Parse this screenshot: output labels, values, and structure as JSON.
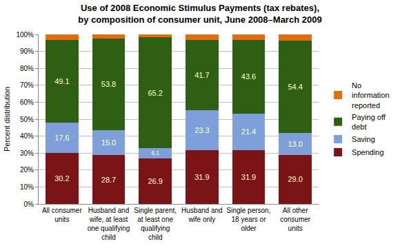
{
  "chart_data": {
    "type": "bar",
    "stacked": true,
    "title": "Use of 2008 Economic Stimulus Payments (tax rebates),\nby composition of consumer unit, June 2008–March 2009",
    "y_label": "Percent distribution",
    "categories": [
      "All consumer\nunits",
      "Husband and\nwife, at least\none qualifying\nchild",
      "Single parent,\nat least one\nqualifying\nchild",
      "Husband and\nwife only",
      "Single person,\n18 years or\nolder",
      "All other\nconsumer\nunits"
    ],
    "series": [
      {
        "name": "Spending",
        "color": "#7B1416",
        "data_labels": true,
        "values": [
          30.2,
          28.7,
          26.9,
          31.9,
          31.9,
          29.0
        ],
        "value_labels": [
          "30.2",
          "28.7",
          "26.9",
          "31.9",
          "31.9",
          "29.0"
        ]
      },
      {
        "name": "Saving",
        "color": "#7F9FDA",
        "data_labels": true,
        "values": [
          17.6,
          15.0,
          6.1,
          23.3,
          21.4,
          13.0
        ],
        "value_labels": [
          "17.6",
          "15.0",
          "6.1",
          "23.3",
          "21.4",
          "13.0"
        ]
      },
      {
        "name": "Paying off\ndebt",
        "color": "#2F5F13",
        "data_labels": true,
        "values": [
          49.1,
          53.8,
          65.2,
          41.7,
          43.6,
          54.4
        ],
        "value_labels": [
          "49.1",
          "53.8",
          "65.2",
          "41.7",
          "43.6",
          "54.4"
        ]
      },
      {
        "name": "No\ninformation\nreported",
        "color": "#E46C0A",
        "data_labels": false,
        "values": [
          3.1,
          2.5,
          1.8,
          3.1,
          3.1,
          3.6
        ]
      }
    ],
    "ylim": [
      0,
      100
    ],
    "yticks": [
      {
        "value": 0,
        "label": "0%"
      },
      {
        "value": 10,
        "label": "10%"
      },
      {
        "value": 20,
        "label": "20%"
      },
      {
        "value": 30,
        "label": "30%"
      },
      {
        "value": 40,
        "label": "40%"
      },
      {
        "value": 50,
        "label": "50%"
      },
      {
        "value": 60,
        "label": "60%"
      },
      {
        "value": 70,
        "label": "70%"
      },
      {
        "value": 80,
        "label": "80%"
      },
      {
        "value": 90,
        "label": "90%"
      },
      {
        "value": 100,
        "label": "100%"
      }
    ],
    "grid": true,
    "legend": "right"
  }
}
